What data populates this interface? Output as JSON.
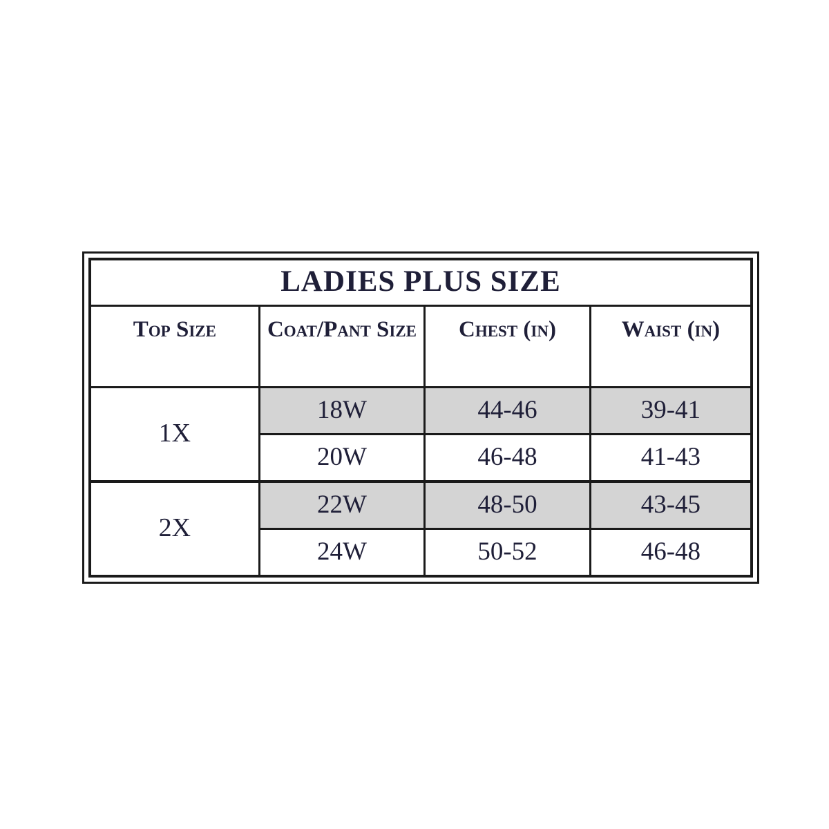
{
  "table": {
    "title": "LADIES PLUS SIZE",
    "columns": [
      {
        "label": "Top Size"
      },
      {
        "label": "Coat/Pant Size"
      },
      {
        "label": "Chest (in)"
      },
      {
        "label": "Waist (in)"
      }
    ],
    "groups": [
      {
        "top_size": "1X",
        "rows": [
          {
            "coat_pant_size": "18W",
            "chest_in": "44-46",
            "waist_in": "39-41",
            "shaded": true
          },
          {
            "coat_pant_size": "20W",
            "chest_in": "46-48",
            "waist_in": "41-43",
            "shaded": false
          }
        ]
      },
      {
        "top_size": "2X",
        "rows": [
          {
            "coat_pant_size": "22W",
            "chest_in": "48-50",
            "waist_in": "43-45",
            "shaded": true
          },
          {
            "coat_pant_size": "24W",
            "chest_in": "50-52",
            "waist_in": "46-48",
            "shaded": false
          }
        ]
      }
    ],
    "colors": {
      "shaded_row": "#d4d4d4",
      "text": "#1f1f38",
      "border": "#1a1a1a",
      "background": "#ffffff"
    }
  }
}
